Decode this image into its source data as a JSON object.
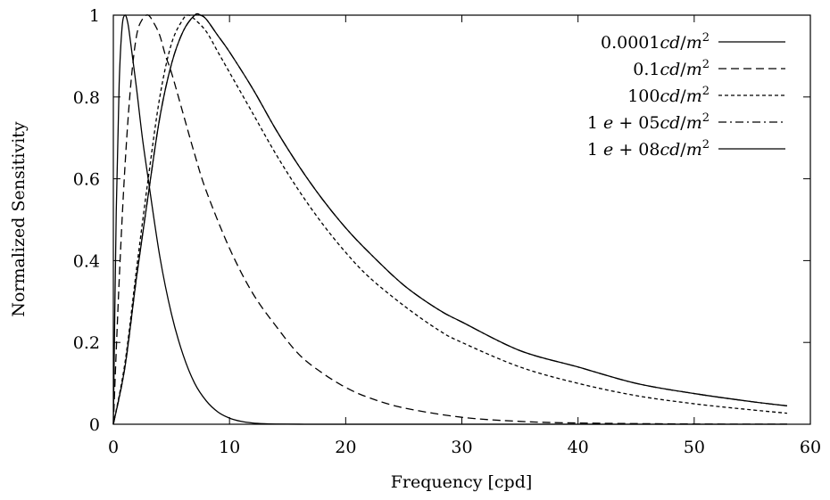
{
  "chart_data": {
    "type": "line",
    "title": "",
    "xlabel": "Frequency [cpd]",
    "ylabel": "Normalized Sensitivity",
    "xlim": [
      0,
      60
    ],
    "ylim": [
      0,
      1
    ],
    "xticks": [
      "0",
      "10",
      "20",
      "30",
      "40",
      "50",
      "60"
    ],
    "yticks": [
      "0",
      "0.2",
      "0.4",
      "0.6",
      "0.8",
      "1"
    ],
    "grid": false,
    "legend_position": "top-right",
    "series": [
      {
        "name": "0.0001cd/m²",
        "legend_label": "0.0001cd/m^2",
        "dash": "solid",
        "x": [
          0,
          0.25,
          0.5,
          0.75,
          1.0,
          1.25,
          1.5,
          2,
          2.5,
          3,
          4,
          5,
          6,
          7,
          8,
          9,
          10,
          11,
          12,
          13,
          14,
          16,
          20,
          30,
          58
        ],
        "y": [
          0,
          0.52,
          0.83,
          0.97,
          1.0,
          0.98,
          0.93,
          0.82,
          0.7,
          0.6,
          0.41,
          0.27,
          0.17,
          0.1,
          0.057,
          0.03,
          0.015,
          0.007,
          0.003,
          0.0012,
          0.0005,
          0.0001,
          0.0,
          0.0,
          0.0
        ]
      },
      {
        "name": "0.1cd/m²",
        "legend_label": "0.1cd/m^2",
        "dash": "long-dash",
        "x": [
          0,
          0.5,
          1,
          1.5,
          2,
          2.5,
          3,
          3.5,
          4,
          4.5,
          5,
          6,
          7,
          8,
          10,
          12,
          14,
          16,
          18,
          20,
          22,
          25,
          30,
          35,
          40,
          50,
          58
        ],
        "y": [
          0,
          0.35,
          0.63,
          0.83,
          0.95,
          0.99,
          1.0,
          0.98,
          0.95,
          0.9,
          0.86,
          0.76,
          0.66,
          0.57,
          0.43,
          0.32,
          0.24,
          0.17,
          0.125,
          0.09,
          0.065,
          0.04,
          0.017,
          0.007,
          0.003,
          0.0006,
          0.0002
        ]
      },
      {
        "name": "100cd/m²",
        "legend_label": "100cd/m^2",
        "dash": "short-dash",
        "x": [
          0,
          1,
          2,
          3,
          4,
          5,
          6,
          6.5,
          7,
          8,
          9,
          10,
          12,
          14,
          16,
          18,
          20,
          22,
          25,
          28,
          30,
          35,
          40,
          45,
          50,
          55,
          58
        ],
        "y": [
          0,
          0.15,
          0.38,
          0.6,
          0.8,
          0.93,
          0.99,
          1.0,
          0.99,
          0.96,
          0.91,
          0.86,
          0.76,
          0.66,
          0.57,
          0.49,
          0.42,
          0.36,
          0.29,
          0.23,
          0.2,
          0.14,
          0.1,
          0.07,
          0.05,
          0.035,
          0.027
        ]
      },
      {
        "name": "1e+05cd/m²",
        "legend_label": "1e+05cd/m^2",
        "dash": "dash-dot",
        "x": [
          0,
          1,
          2,
          3,
          4,
          5,
          6,
          7,
          7.5,
          8,
          9,
          10,
          12,
          14,
          16,
          18,
          20,
          22,
          25,
          28,
          30,
          35,
          40,
          45,
          50,
          55,
          58
        ],
        "y": [
          0,
          0.14,
          0.36,
          0.56,
          0.75,
          0.88,
          0.96,
          1.0,
          1.0,
          0.99,
          0.95,
          0.91,
          0.82,
          0.72,
          0.63,
          0.55,
          0.48,
          0.42,
          0.34,
          0.28,
          0.25,
          0.18,
          0.14,
          0.1,
          0.075,
          0.055,
          0.045
        ]
      },
      {
        "name": "1e+08cd/m²",
        "legend_label": "1e+08cd/m^2",
        "dash": "solid",
        "x": [
          0,
          1,
          2,
          3,
          4,
          5,
          6,
          7,
          7.5,
          8,
          9,
          10,
          12,
          14,
          16,
          18,
          20,
          22,
          25,
          28,
          30,
          35,
          40,
          45,
          50,
          55,
          58
        ],
        "y": [
          0,
          0.14,
          0.36,
          0.56,
          0.75,
          0.88,
          0.96,
          1.0,
          1.0,
          0.99,
          0.95,
          0.91,
          0.82,
          0.72,
          0.63,
          0.55,
          0.48,
          0.42,
          0.34,
          0.28,
          0.25,
          0.18,
          0.14,
          0.1,
          0.075,
          0.055,
          0.045
        ]
      }
    ]
  }
}
